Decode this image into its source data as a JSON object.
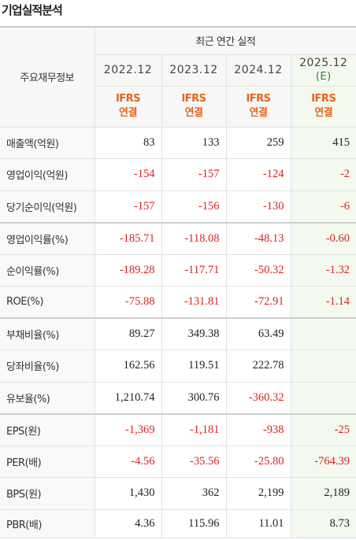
{
  "title": "기업실적분석",
  "table": {
    "row_header": "주요재무정보",
    "group_header": "최근 연간 실적",
    "periods": [
      {
        "label": "2022.12",
        "basis": "IFRS",
        "scope": "연결"
      },
      {
        "label": "2023.12",
        "basis": "IFRS",
        "scope": "연결"
      },
      {
        "label": "2024.12",
        "basis": "IFRS",
        "scope": "연결"
      },
      {
        "label": "2025.12",
        "estimate": "(E)",
        "basis": "IFRS",
        "scope": "연결"
      }
    ],
    "rows": [
      {
        "label": "매출액(억원)",
        "values": [
          "83",
          "133",
          "259",
          "415"
        ]
      },
      {
        "label": "영업이익(억원)",
        "values": [
          "-154",
          "-157",
          "-124",
          "-2"
        ]
      },
      {
        "label": "당기순이익(억원)",
        "values": [
          "-157",
          "-156",
          "-130",
          "-6"
        ]
      },
      {
        "label": "영업이익률(%)",
        "values": [
          "-185.71",
          "-118.08",
          "-48.13",
          "-0.60"
        ]
      },
      {
        "label": "순이익률(%)",
        "values": [
          "-189.28",
          "-117.71",
          "-50.32",
          "-1.32"
        ]
      },
      {
        "label": "ROE(%)",
        "values": [
          "-75.88",
          "-131.81",
          "-72.91",
          "-1.14"
        ]
      },
      {
        "label": "부채비율(%)",
        "values": [
          "89.27",
          "349.38",
          "63.49",
          null
        ]
      },
      {
        "label": "당좌비율(%)",
        "values": [
          "162.56",
          "119.51",
          "222.78",
          null
        ]
      },
      {
        "label": "유보율(%)",
        "values": [
          "1,210.74",
          "300.76",
          "-360.32",
          null
        ]
      },
      {
        "label": "EPS(원)",
        "values": [
          "-1,369",
          "-1,181",
          "-938",
          "-25"
        ]
      },
      {
        "label": "PER(배)",
        "values": [
          "-4.56",
          "-35.56",
          "-25.80",
          "-764.39"
        ]
      },
      {
        "label": "BPS(원)",
        "values": [
          "1,430",
          "362",
          "2,199",
          "2,189"
        ]
      },
      {
        "label": "PBR(배)",
        "values": [
          "4.36",
          "115.96",
          "11.01",
          "8.73"
        ]
      }
    ]
  }
}
